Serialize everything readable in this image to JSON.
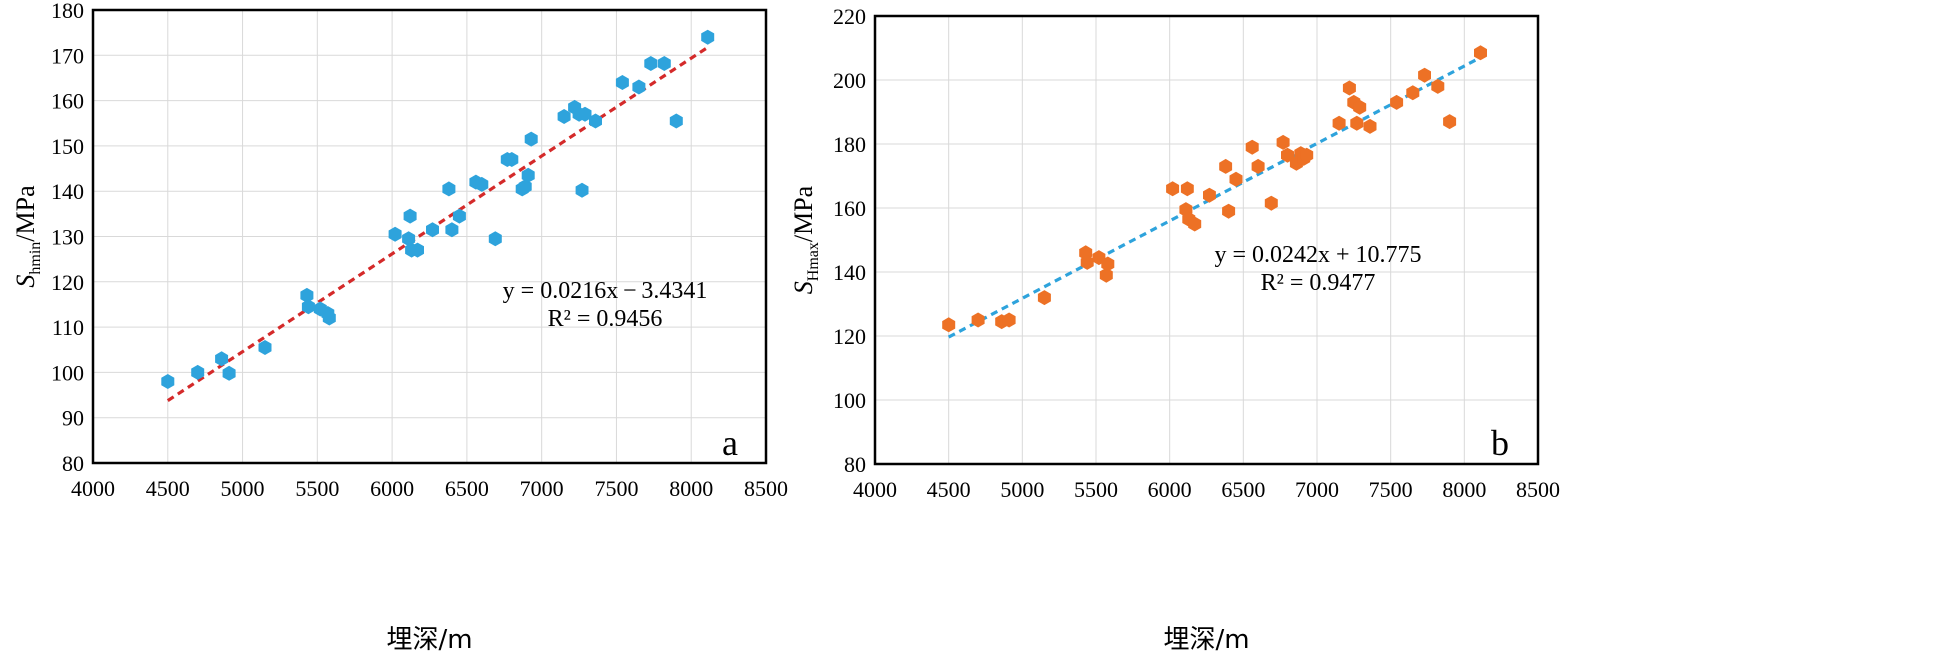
{
  "chart_data": [
    {
      "type": "scatter",
      "panel_label": "a",
      "xlabel": "埋深/m",
      "ylabel_main": "S",
      "ylabel_sub": "hmin",
      "ylabel_unit": "/MPa",
      "xlim": [
        4000,
        8500
      ],
      "ylim": [
        80,
        180
      ],
      "xticks": [
        "4000",
        "4500",
        "5000",
        "5500",
        "6000",
        "6500",
        "7000",
        "7500",
        "8000",
        "8500"
      ],
      "yticks": [
        "80",
        "90",
        "100",
        "110",
        "120",
        "130",
        "140",
        "150",
        "160",
        "170",
        "180"
      ],
      "grid": true,
      "marker_color": "#2ea3dc",
      "fit_color": "#d42a2a",
      "equation_line1": "y = 0.0216x − 3.4341",
      "equation_line2": "R² = 0.9456",
      "fit": {
        "slope": 0.0216,
        "intercept": -3.4341,
        "x_range": [
          4500,
          8100
        ]
      },
      "points": [
        [
          4500,
          98
        ],
        [
          4700,
          100
        ],
        [
          4860,
          103
        ],
        [
          4910,
          99.8
        ],
        [
          5150,
          105.5
        ],
        [
          5430,
          117
        ],
        [
          5440,
          114.5
        ],
        [
          5520,
          114
        ],
        [
          5570,
          113
        ],
        [
          5580,
          112
        ],
        [
          6020,
          130.5
        ],
        [
          6110,
          129.5
        ],
        [
          6120,
          134.5
        ],
        [
          6130,
          127
        ],
        [
          6170,
          127
        ],
        [
          6270,
          131.5
        ],
        [
          6380,
          140.5
        ],
        [
          6400,
          131.5
        ],
        [
          6450,
          134.5
        ],
        [
          6560,
          142
        ],
        [
          6600,
          141.5
        ],
        [
          6690,
          129.5
        ],
        [
          6770,
          147
        ],
        [
          6800,
          147
        ],
        [
          6870,
          140.5
        ],
        [
          6890,
          141
        ],
        [
          6910,
          143.5
        ],
        [
          6930,
          151.5
        ],
        [
          7150,
          156.5
        ],
        [
          7220,
          158.5
        ],
        [
          7250,
          157
        ],
        [
          7270,
          140.2
        ],
        [
          7290,
          157
        ],
        [
          7360,
          155.5
        ],
        [
          7540,
          164
        ],
        [
          7650,
          163
        ],
        [
          7730,
          168.2
        ],
        [
          7820,
          168.2
        ],
        [
          7900,
          155.5
        ],
        [
          8110,
          174
        ]
      ]
    },
    {
      "type": "scatter",
      "panel_label": "b",
      "xlabel": "埋深/m",
      "ylabel_main": "S",
      "ylabel_sub": "Hmax",
      "ylabel_unit": "/MPa",
      "xlim": [
        4000,
        8500
      ],
      "ylim": [
        80,
        220
      ],
      "xticks": [
        "4000",
        "4500",
        "5000",
        "5500",
        "6000",
        "6500",
        "7000",
        "7500",
        "8000",
        "8500"
      ],
      "yticks": [
        "80",
        "100",
        "120",
        "140",
        "160",
        "180",
        "200",
        "220"
      ],
      "grid": true,
      "marker_color": "#ed7125",
      "fit_color": "#2ea3dc",
      "equation_line1": "y = 0.0242x + 10.775",
      "equation_line2": "R² = 0.9477",
      "fit": {
        "slope": 0.0242,
        "intercept": 10.775,
        "x_range": [
          4500,
          8100
        ]
      },
      "points": [
        [
          4500,
          123.5
        ],
        [
          4700,
          125
        ],
        [
          4860,
          124.5
        ],
        [
          4910,
          125
        ],
        [
          5150,
          132
        ],
        [
          5430,
          146
        ],
        [
          5440,
          143
        ],
        [
          5520,
          144.5
        ],
        [
          5570,
          139
        ],
        [
          5580,
          142.5
        ],
        [
          6020,
          166
        ],
        [
          6110,
          159.5
        ],
        [
          6120,
          166
        ],
        [
          6130,
          156.5
        ],
        [
          6170,
          155
        ],
        [
          6270,
          164
        ],
        [
          6380,
          173
        ],
        [
          6400,
          159
        ],
        [
          6450,
          169
        ],
        [
          6560,
          179
        ],
        [
          6600,
          173
        ],
        [
          6690,
          161.5
        ],
        [
          6770,
          180.5
        ],
        [
          6800,
          176.5
        ],
        [
          6860,
          174
        ],
        [
          6890,
          177
        ],
        [
          6910,
          175.5
        ],
        [
          6930,
          176.5
        ],
        [
          7150,
          186.5
        ],
        [
          7220,
          197.5
        ],
        [
          7250,
          193
        ],
        [
          7270,
          186.5
        ],
        [
          7290,
          191.5
        ],
        [
          7360,
          185.5
        ],
        [
          7540,
          193
        ],
        [
          7650,
          196
        ],
        [
          7730,
          201.5
        ],
        [
          7820,
          198
        ],
        [
          7900,
          187
        ],
        [
          8110,
          208.5
        ]
      ]
    }
  ]
}
